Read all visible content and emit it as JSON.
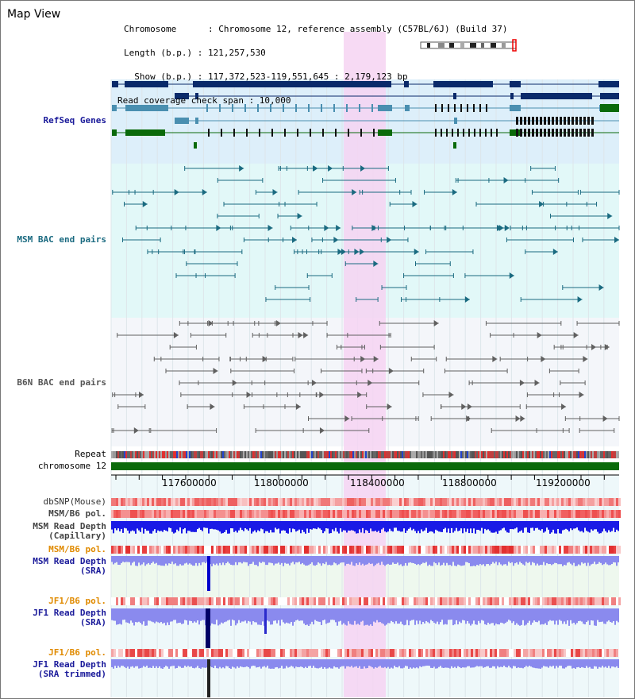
{
  "window": {
    "title": "Map View"
  },
  "info": {
    "chromosome_line": "Chromosome      : Chromosome 12, reference assembly (C57BL/6J) (Build 37)",
    "length_line": "Length (b.p.) : 121,257,530",
    "show_line": "  Show (b.p.) : 117,372,523-119,551,645 : 2,179,123 bp",
    "coverage_line": "Read coverage check span : 10,000"
  },
  "tracks": {
    "refseq": "RefSeq Genes",
    "msm_bac": "MSM BAC end pairs",
    "b6n_bac": "B6N BAC end pairs",
    "repeat": "Repeat",
    "chromosome": "chromosome 12",
    "dbsnp": "dbSNP(Mouse)",
    "msm_b6_pol_cap": "MSM/B6 pol.",
    "msm_depth_cap": "MSM Read Depth\n(Capillary)",
    "msm_b6_pol_sra": "MSM/B6 pol.",
    "msm_depth_sra": "MSM Read Depth\n(SRA)",
    "jf1_b6_pol": "JF1/B6 pol.",
    "jf1_depth_sra": "JF1 Read Depth\n(SRA)",
    "jf1_b6_pol2": "JF1/B6 pol.",
    "jf1_depth_trim": "JF1 Read Depth\n(SRA trimmed)"
  },
  "axis": {
    "ticks": [
      "117600000",
      "118000000",
      "118400000",
      "118800000",
      "119200000"
    ]
  },
  "colors": {
    "refseq_bg": "#ddeffa",
    "msm_bg": "#e2f8f8",
    "b6n_bg": "#f4f6fa",
    "highlight": "#f6d4f2",
    "navy": "#0a2a6a",
    "steel": "#4a8fb0",
    "green": "#0a6a0a",
    "teal": "#1a6a80",
    "gray": "#606060",
    "depth_blue": "#1a1ae6",
    "depth_light": "#8a8aee",
    "label_navy": "#1a1a9a",
    "label_teal": "#1a6a80",
    "label_orange": "#e08a00",
    "label_gray": "#555555"
  }
}
